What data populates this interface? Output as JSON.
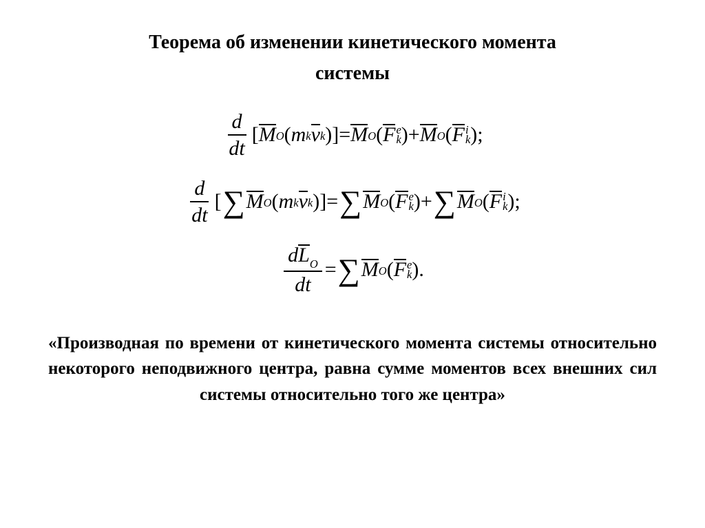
{
  "title_line1": "Теорема об изменении кинетического момента",
  "title_line2": "системы",
  "eq1": {
    "lhs_num": "d",
    "lhs_den": "dt",
    "bracket_open": "[",
    "Mbar": "M",
    "Osub": "O",
    "paren_open": "(",
    "m": "m",
    "ksub": "k",
    "vbar": "v",
    "paren_close": ")",
    "bracket_close": "]",
    "eq": " = ",
    "Fbar": "F",
    "e_sup": "e",
    "i_sup": "i",
    "plus": " + ",
    "semi": ";"
  },
  "eq3": {
    "lhs_num_d": "d",
    "Lbar": "L",
    "Osub": "O",
    "lhs_den": "dt",
    "eq": " = ",
    "dot": "."
  },
  "conclusion_line1": "«Производная по времени от кинетического момента",
  "conclusion_line2": "системы относительно некоторого неподвижного центра,",
  "conclusion_line3": "равна сумме моментов всех внешних сил системы",
  "conclusion_line4": "относительно того же центра»",
  "colors": {
    "background": "#ffffff",
    "text": "#000000"
  },
  "typography": {
    "title_fontsize": 28,
    "equation_fontsize": 30,
    "conclusion_fontsize": 25,
    "font_family": "Times New Roman"
  }
}
